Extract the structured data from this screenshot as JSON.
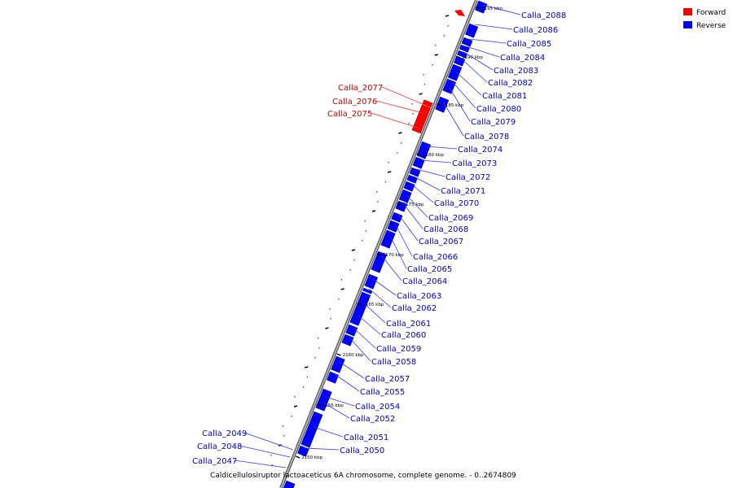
{
  "caption": "Caldicellulosiruptor lactoaceticus 6A chromosome, complete genome. - 0..2674809",
  "legend": [
    {
      "label": "Forward",
      "color": "#ff0000"
    },
    {
      "label": "Reverse",
      "color": "#0000ff"
    }
  ],
  "strand_colors": {
    "forward": "#ff0000",
    "reverse": "#0000ff",
    "backbone": "#808080"
  },
  "kbp_ticks": [
    "2150 kbp",
    "2155 kbp",
    "2160 kbp",
    "2165 kbp",
    "2170 kbp",
    "2175 kbp",
    "2180 kbp",
    "2185 kbp",
    "2190 kbp",
    "2195 kbp"
  ],
  "genes_reverse": [
    "Calla_2088",
    "Calla_2086",
    "Calla_2085",
    "Calla_2084",
    "Calla_2083",
    "Calla_2082",
    "Calla_2081",
    "Calla_2080",
    "Calla_2079",
    "Calla_2078",
    "Calla_2074",
    "Calla_2073",
    "Calla_2072",
    "Calla_2071",
    "Calla_2070",
    "Calla_2069",
    "Calla_2068",
    "Calla_2067",
    "Calla_2066",
    "Calla_2065",
    "Calla_2064",
    "Calla_2063",
    "Calla_2062",
    "Calla_2061",
    "Calla_2060",
    "Calla_2059",
    "Calla_2058",
    "Calla_2057",
    "Calla_2055",
    "Calla_2054",
    "Calla_2052",
    "Calla_2051",
    "Calla_2050",
    "Calla_2049",
    "Calla_2048",
    "Calla_2047"
  ],
  "genes_forward": [
    "Calla_2077",
    "Calla_2076",
    "Calla_2075"
  ]
}
